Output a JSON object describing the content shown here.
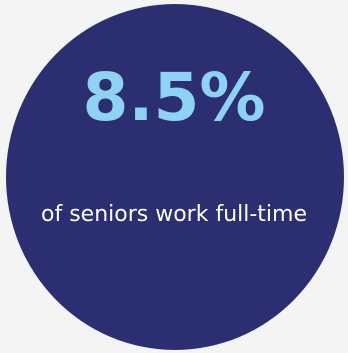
{
  "stat": {
    "value": "8.5%",
    "caption": "of seniors work full-time"
  },
  "colors": {
    "background": "#f4f4f4",
    "circle": "#2b2f72",
    "stat_text": "#8fd3f4",
    "caption_text": "#ffffff"
  }
}
